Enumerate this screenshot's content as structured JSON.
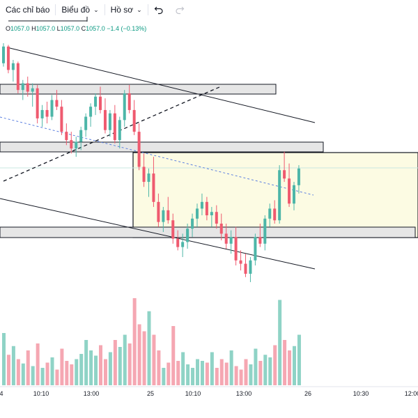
{
  "toolbar": {
    "indicators_label": "Các chỉ báo",
    "chart_label": "Biểu đồ",
    "profile_label": "Hồ sơ",
    "undo_icon": "undo-icon",
    "redo_icon": "redo-icon",
    "chevron_icon": "chevron-down-icon"
  },
  "ohlc": {
    "o_key": "O",
    "o": "1057.0",
    "h_key": "H",
    "h": "1057.0",
    "l_key": "L",
    "l": "1057.0",
    "c_key": "C",
    "c": "1057.0",
    "change": "−1.4 (−0.13%)"
  },
  "colors": {
    "up": "#4db6a8",
    "down": "#ef5a6f",
    "vol_up": "#8fd3c6",
    "vol_down": "#f5a7b2",
    "zone": "#fcfbe3"
  },
  "chart_data": {
    "type": "candlestick",
    "x_tick_labels": [
      "4",
      "10:10",
      "13:00",
      "25",
      "10:10",
      "13:00",
      "26",
      "10:30",
      "12:00"
    ],
    "candles": [
      {
        "o": 1046,
        "h": 1058,
        "l": 1044,
        "c": 1056
      },
      {
        "o": 1056,
        "h": 1057,
        "l": 1040,
        "c": 1042
      },
      {
        "o": 1042,
        "h": 1048,
        "l": 1035,
        "c": 1046
      },
      {
        "o": 1046,
        "h": 1047,
        "l": 1028,
        "c": 1030
      },
      {
        "o": 1030,
        "h": 1036,
        "l": 1024,
        "c": 1034
      },
      {
        "o": 1034,
        "h": 1038,
        "l": 1026,
        "c": 1029
      },
      {
        "o": 1029,
        "h": 1034,
        "l": 1020,
        "c": 1031
      },
      {
        "o": 1031,
        "h": 1033,
        "l": 1010,
        "c": 1013
      },
      {
        "o": 1013,
        "h": 1021,
        "l": 1008,
        "c": 1018
      },
      {
        "o": 1018,
        "h": 1023,
        "l": 1010,
        "c": 1014
      },
      {
        "o": 1014,
        "h": 1027,
        "l": 1012,
        "c": 1024
      },
      {
        "o": 1024,
        "h": 1030,
        "l": 1018,
        "c": 1020
      },
      {
        "o": 1020,
        "h": 1024,
        "l": 1003,
        "c": 1005
      },
      {
        "o": 1005,
        "h": 1010,
        "l": 997,
        "c": 1000
      },
      {
        "o": 1000,
        "h": 1005,
        "l": 992,
        "c": 995
      },
      {
        "o": 995,
        "h": 1002,
        "l": 990,
        "c": 999
      },
      {
        "o": 999,
        "h": 1008,
        "l": 994,
        "c": 1006
      },
      {
        "o": 1006,
        "h": 1016,
        "l": 1002,
        "c": 1014
      },
      {
        "o": 1014,
        "h": 1022,
        "l": 1008,
        "c": 1020
      },
      {
        "o": 1020,
        "h": 1028,
        "l": 1015,
        "c": 1026
      },
      {
        "o": 1026,
        "h": 1032,
        "l": 1016,
        "c": 1018
      },
      {
        "o": 1018,
        "h": 1025,
        "l": 1004,
        "c": 1006
      },
      {
        "o": 1006,
        "h": 1018,
        "l": 1002,
        "c": 1016
      },
      {
        "o": 1016,
        "h": 1021,
        "l": 998,
        "c": 1000
      },
      {
        "o": 1000,
        "h": 1014,
        "l": 995,
        "c": 1012
      },
      {
        "o": 1012,
        "h": 1030,
        "l": 1008,
        "c": 1028
      },
      {
        "o": 1028,
        "h": 1033,
        "l": 1016,
        "c": 1018
      },
      {
        "o": 1018,
        "h": 1024,
        "l": 1003,
        "c": 1005
      },
      {
        "o": 1005,
        "h": 1010,
        "l": 982,
        "c": 984
      },
      {
        "o": 984,
        "h": 992,
        "l": 972,
        "c": 975
      },
      {
        "o": 975,
        "h": 983,
        "l": 966,
        "c": 980
      },
      {
        "o": 980,
        "h": 990,
        "l": 960,
        "c": 963
      },
      {
        "o": 963,
        "h": 968,
        "l": 948,
        "c": 951
      },
      {
        "o": 951,
        "h": 960,
        "l": 945,
        "c": 958
      },
      {
        "o": 958,
        "h": 966,
        "l": 950,
        "c": 952
      },
      {
        "o": 952,
        "h": 956,
        "l": 938,
        "c": 941
      },
      {
        "o": 941,
        "h": 946,
        "l": 934,
        "c": 936
      },
      {
        "o": 936,
        "h": 944,
        "l": 930,
        "c": 939
      },
      {
        "o": 939,
        "h": 950,
        "l": 935,
        "c": 947
      },
      {
        "o": 947,
        "h": 956,
        "l": 942,
        "c": 953
      },
      {
        "o": 953,
        "h": 962,
        "l": 948,
        "c": 959
      },
      {
        "o": 959,
        "h": 968,
        "l": 955,
        "c": 963
      },
      {
        "o": 963,
        "h": 966,
        "l": 952,
        "c": 955
      },
      {
        "o": 955,
        "h": 960,
        "l": 948,
        "c": 957
      },
      {
        "o": 957,
        "h": 961,
        "l": 947,
        "c": 950
      },
      {
        "o": 950,
        "h": 956,
        "l": 940,
        "c": 944
      },
      {
        "o": 944,
        "h": 950,
        "l": 935,
        "c": 938
      },
      {
        "o": 938,
        "h": 946,
        "l": 932,
        "c": 942
      },
      {
        "o": 942,
        "h": 948,
        "l": 925,
        "c": 928
      },
      {
        "o": 928,
        "h": 934,
        "l": 922,
        "c": 926
      },
      {
        "o": 926,
        "h": 932,
        "l": 918,
        "c": 920
      },
      {
        "o": 920,
        "h": 930,
        "l": 915,
        "c": 928
      },
      {
        "o": 928,
        "h": 944,
        "l": 925,
        "c": 942
      },
      {
        "o": 942,
        "h": 950,
        "l": 936,
        "c": 938
      },
      {
        "o": 938,
        "h": 955,
        "l": 934,
        "c": 953
      },
      {
        "o": 953,
        "h": 962,
        "l": 948,
        "c": 959
      },
      {
        "o": 959,
        "h": 964,
        "l": 950,
        "c": 952
      },
      {
        "o": 952,
        "h": 985,
        "l": 950,
        "c": 982
      },
      {
        "o": 982,
        "h": 993,
        "l": 975,
        "c": 977
      },
      {
        "o": 977,
        "h": 986,
        "l": 960,
        "c": 962
      },
      {
        "o": 962,
        "h": 975,
        "l": 958,
        "c": 973
      },
      {
        "o": 973,
        "h": 985,
        "l": 968,
        "c": 983
      }
    ],
    "volumes": [
      60,
      35,
      45,
      30,
      25,
      40,
      22,
      48,
      20,
      26,
      32,
      18,
      42,
      28,
      24,
      30,
      36,
      52,
      40,
      34,
      46,
      30,
      38,
      52,
      44,
      58,
      48,
      100,
      70,
      62,
      85,
      58,
      40,
      20,
      26,
      68,
      28,
      38,
      24,
      20,
      30,
      28,
      26,
      38,
      20,
      30,
      26,
      40,
      22,
      18,
      30,
      24,
      42,
      28,
      35,
      32,
      46,
      98,
      52,
      40,
      45,
      58
    ]
  }
}
